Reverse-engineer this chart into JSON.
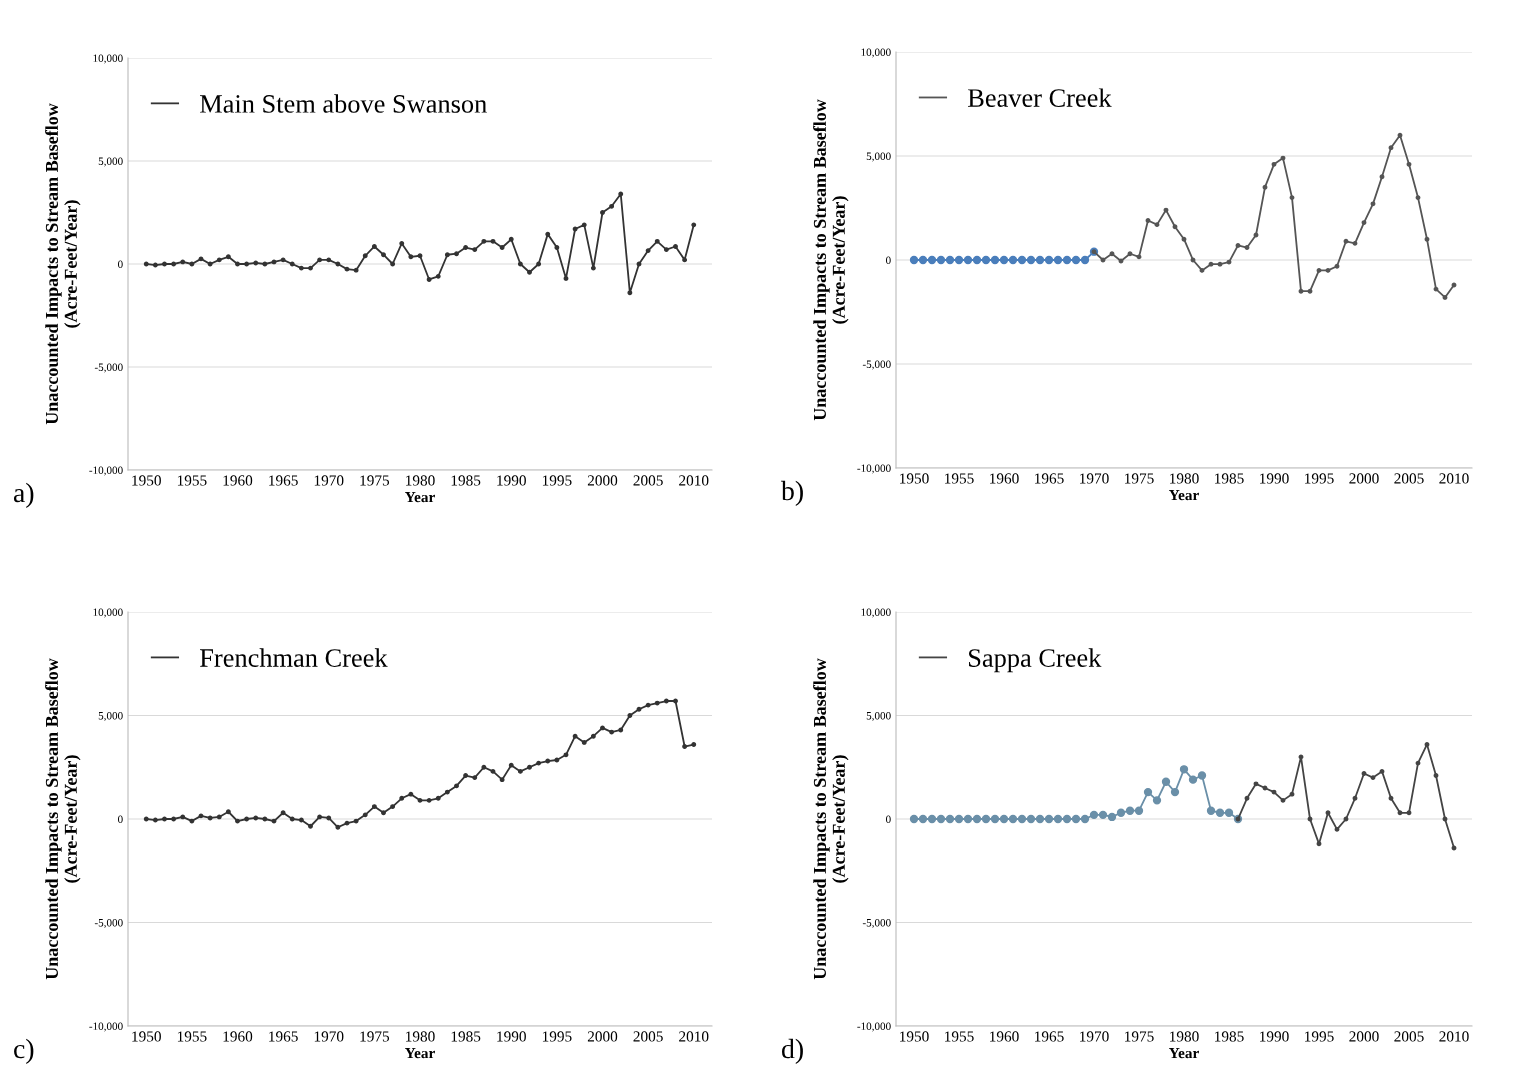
{
  "chart_data": [
    {
      "type": "line",
      "xlabel": "Year",
      "ylabel": "Unaccounted Impacts to Stream Baseflow\n(Acre-Feet/Year)",
      "annotations": [
        "a)"
      ],
      "grid": "y",
      "legend": "top left",
      "marker": "circle",
      "line_style": "solid",
      "xlim": [
        1948,
        2012
      ],
      "xticks": [
        1950,
        1955,
        1960,
        1965,
        1970,
        1975,
        1980,
        1985,
        1990,
        1995,
        2000,
        2005,
        2010
      ],
      "ylim": [
        -10000,
        10000
      ],
      "yticks": [
        {
          "value": -10000,
          "label": "-10,000"
        },
        {
          "value": -5000,
          "label": "-5,000"
        },
        0,
        {
          "value": 5000,
          "label": "5,000"
        },
        {
          "value": 10000,
          "label": "10,000"
        }
      ],
      "x": [
        1950,
        1951,
        1952,
        1953,
        1954,
        1955,
        1956,
        1957,
        1958,
        1959,
        1960,
        1961,
        1962,
        1963,
        1964,
        1965,
        1966,
        1967,
        1968,
        1969,
        1970,
        1971,
        1972,
        1973,
        1974,
        1975,
        1976,
        1977,
        1978,
        1979,
        1980,
        1981,
        1982,
        1983,
        1984,
        1985,
        1986,
        1987,
        1988,
        1989,
        1990,
        1991,
        1992,
        1993,
        1994,
        1995,
        1996,
        1997,
        1998,
        1999,
        2000,
        2001,
        2002,
        2003,
        2004,
        2005,
        2006,
        2007,
        2008,
        2009,
        2010
      ],
      "series": [
        {
          "name": "Main Stem above Swanson",
          "color": "#333333",
          "values": [
            0,
            -50,
            0,
            0,
            100,
            0,
            250,
            0,
            200,
            350,
            0,
            0,
            50,
            0,
            100,
            200,
            0,
            -200,
            -200,
            200,
            200,
            0,
            -250,
            -300,
            400,
            850,
            450,
            0,
            1000,
            350,
            400,
            -750,
            -600,
            450,
            500,
            800,
            700,
            1100,
            1100,
            800,
            1200,
            0,
            -400,
            0,
            1450,
            800,
            -700,
            1700,
            1900,
            -200,
            2500,
            2800,
            3400,
            -1400,
            0,
            650,
            1100,
            700,
            850,
            200,
            1900
          ]
        }
      ]
    },
    {
      "type": "line",
      "xlabel": "Year",
      "ylabel": "Unaccounted Impacts to Stream Baseflow\n(Acre-Feet/Year)",
      "annotations": [
        "b)"
      ],
      "grid": "y",
      "legend": "top left",
      "marker": "circle",
      "line_style": "solid",
      "xlim": [
        1948,
        2012
      ],
      "xticks": [
        1950,
        1955,
        1960,
        1965,
        1970,
        1975,
        1980,
        1985,
        1990,
        1995,
        2000,
        2005,
        2010
      ],
      "ylim": [
        -10000,
        10000
      ],
      "yticks": [
        {
          "value": -10000,
          "label": "-10,000"
        },
        {
          "value": -5000,
          "label": "-5,000"
        },
        0,
        {
          "value": 5000,
          "label": "5,000"
        },
        {
          "value": 10000,
          "label": "10,000"
        }
      ],
      "series": [
        {
          "color": "#4a7ebb",
          "x": [
            1950,
            1951,
            1952,
            1953,
            1954,
            1955,
            1956,
            1957,
            1958,
            1959,
            1960,
            1961,
            1962,
            1963,
            1964,
            1965,
            1966,
            1967,
            1968,
            1969,
            1970
          ],
          "values": [
            0,
            0,
            0,
            0,
            0,
            0,
            0,
            0,
            0,
            0,
            0,
            0,
            0,
            0,
            0,
            0,
            0,
            0,
            0,
            0,
            400
          ]
        },
        {
          "name": "Beaver Creek",
          "color": "#555555",
          "x": [
            1970,
            1971,
            1972,
            1973,
            1974,
            1975,
            1976,
            1977,
            1978,
            1979,
            1980,
            1981,
            1982,
            1983,
            1984,
            1985,
            1986,
            1987,
            1988,
            1989,
            1990,
            1991,
            1992,
            1993,
            1994,
            1995,
            1996,
            1997,
            1998,
            1999,
            2000,
            2001,
            2002,
            2003,
            2004,
            2005,
            2006,
            2007,
            2008,
            2009,
            2010
          ],
          "values": [
            400,
            0,
            300,
            -50,
            300,
            150,
            1900,
            1700,
            2400,
            1600,
            1000,
            0,
            -500,
            -200,
            -200,
            -100,
            700,
            600,
            1200,
            3500,
            4600,
            4900,
            3000,
            -1500,
            -1500,
            -500,
            -500,
            -300,
            900,
            800,
            1800,
            2700,
            4000,
            5400,
            6000,
            4600,
            3000,
            1000,
            -1400,
            -1800,
            -1200
          ]
        }
      ]
    },
    {
      "type": "line",
      "xlabel": "Year",
      "ylabel": "Unaccounted Impacts to Stream Baseflow\n(Acre-Feet/Year)",
      "annotations": [
        "c)"
      ],
      "grid": "y",
      "legend": "top left",
      "marker": "circle",
      "line_style": "solid",
      "xlim": [
        1948,
        2012
      ],
      "xticks": [
        1950,
        1955,
        1960,
        1965,
        1970,
        1975,
        1980,
        1985,
        1990,
        1995,
        2000,
        2005,
        2010
      ],
      "ylim": [
        -10000,
        10000
      ],
      "yticks": [
        {
          "value": -10000,
          "label": "-10,000"
        },
        {
          "value": -5000,
          "label": "-5,000"
        },
        0,
        {
          "value": 5000,
          "label": "5,000"
        },
        {
          "value": 10000,
          "label": "10,000"
        }
      ],
      "x": [
        1950,
        1951,
        1952,
        1953,
        1954,
        1955,
        1956,
        1957,
        1958,
        1959,
        1960,
        1961,
        1962,
        1963,
        1964,
        1965,
        1966,
        1967,
        1968,
        1969,
        1970,
        1971,
        1972,
        1973,
        1974,
        1975,
        1976,
        1977,
        1978,
        1979,
        1980,
        1981,
        1982,
        1983,
        1984,
        1985,
        1986,
        1987,
        1988,
        1989,
        1990,
        1991,
        1992,
        1993,
        1994,
        1995,
        1996,
        1997,
        1998,
        1999,
        2000,
        2001,
        2002,
        2003,
        2004,
        2005,
        2006,
        2007,
        2008,
        2009,
        2010
      ],
      "series": [
        {
          "name": "Frenchman Creek",
          "color": "#333333",
          "values": [
            0,
            -50,
            0,
            0,
            100,
            -100,
            150,
            50,
            100,
            350,
            -100,
            0,
            50,
            0,
            -100,
            300,
            0,
            -50,
            -350,
            100,
            50,
            -400,
            -200,
            -100,
            200,
            600,
            300,
            600,
            1000,
            1200,
            900,
            900,
            1000,
            1300,
            1600,
            2100,
            2000,
            2500,
            2300,
            1900,
            2600,
            2300,
            2500,
            2700,
            2800,
            2850,
            3100,
            4000,
            3700,
            4000,
            4400,
            4200,
            4300,
            5000,
            5300,
            5500,
            5600,
            5700,
            5700,
            3500,
            3600
          ]
        }
      ]
    },
    {
      "type": "line",
      "xlabel": "Year",
      "ylabel": "Unaccounted Impacts to Stream Baseflow\n(Acre-Feet/Year)",
      "annotations": [
        "d)"
      ],
      "grid": "y",
      "legend": "top left",
      "marker": "circle",
      "line_style": "solid",
      "xlim": [
        1948,
        2012
      ],
      "xticks": [
        1950,
        1955,
        1960,
        1965,
        1970,
        1975,
        1980,
        1985,
        1990,
        1995,
        2000,
        2005,
        2010
      ],
      "ylim": [
        -10000,
        10000
      ],
      "yticks": [
        {
          "value": -10000,
          "label": "-10,000"
        },
        {
          "value": -5000,
          "label": "-5,000"
        },
        0,
        {
          "value": 5000,
          "label": "5,000"
        },
        {
          "value": 10000,
          "label": "10,000"
        }
      ],
      "series": [
        {
          "color": "#6a8fa8",
          "x": [
            1950,
            1951,
            1952,
            1953,
            1954,
            1955,
            1956,
            1957,
            1958,
            1959,
            1960,
            1961,
            1962,
            1963,
            1964,
            1965,
            1966,
            1967,
            1968,
            1969,
            1970,
            1971,
            1972,
            1973,
            1974,
            1975,
            1976,
            1977,
            1978,
            1979,
            1980,
            1981,
            1982,
            1983,
            1984,
            1985,
            1986
          ],
          "values": [
            0,
            0,
            0,
            0,
            0,
            0,
            0,
            0,
            0,
            0,
            0,
            0,
            0,
            0,
            0,
            0,
            0,
            0,
            0,
            0,
            200,
            200,
            100,
            300,
            400,
            400,
            1300,
            900,
            1800,
            1300,
            2400,
            1900,
            2100,
            400,
            300,
            300,
            0
          ]
        },
        {
          "name": "Sappa Creek",
          "color": "#444444",
          "x": [
            1986,
            1987,
            1988,
            1989,
            1990,
            1991,
            1992,
            1993,
            1994,
            1995,
            1996,
            1997,
            1998,
            1999,
            2000,
            2001,
            2002,
            2003,
            2004,
            2005,
            2006,
            2007,
            2008,
            2009,
            2010
          ],
          "values": [
            0,
            1000,
            1700,
            1500,
            1300,
            900,
            1200,
            3000,
            0,
            -1200,
            300,
            -500,
            0,
            1000,
            2200,
            2000,
            2300,
            1000,
            300,
            300,
            2700,
            3600,
            2100,
            0,
            -1400
          ]
        }
      ]
    }
  ]
}
